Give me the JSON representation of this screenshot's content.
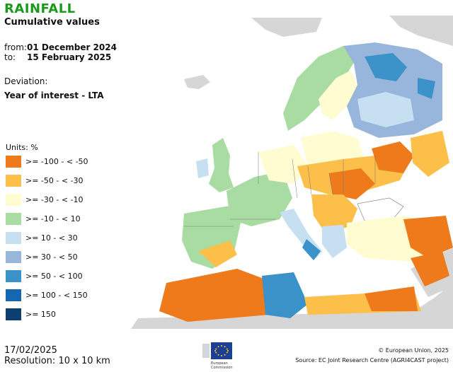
{
  "header": {
    "title": "RAINFALL",
    "subtitle": "Cumulative values",
    "from_label": "from:",
    "from_date": "01 December 2024",
    "to_label": "to:",
    "to_date": "15 February 2025",
    "deviation_label": "Deviation:",
    "deviation_value": "Year of interest - LTA"
  },
  "legend": {
    "units": "Units: %",
    "items": [
      {
        "label": ">= -100 - < -50",
        "color": "#ee7a1b"
      },
      {
        "label": ">= -50 - < -30",
        "color": "#fbbf4a"
      },
      {
        "label": ">= -30 - < -10",
        "color": "#fefcd0"
      },
      {
        "label": ">= -10 - < 10",
        "color": "#a9dca2"
      },
      {
        "label": ">= 10 - < 30",
        "color": "#c6dff1"
      },
      {
        "label": ">= 30 - < 50",
        "color": "#98b6dc"
      },
      {
        "label": ">= 50 - < 100",
        "color": "#3a92c8"
      },
      {
        "label": ">= 100 - < 150",
        "color": "#1467b0"
      },
      {
        "label": ">= 150",
        "color": "#0c3f70"
      }
    ]
  },
  "footer": {
    "date": "17/02/2025",
    "resolution": "Resolution: 10 x 10 km",
    "copyright": "© European Union, 2025",
    "source": "Source: EC Joint Research Centre (AGRI4CAST project)",
    "logo_text_1": "European",
    "logo_text_2": "Commission"
  }
}
